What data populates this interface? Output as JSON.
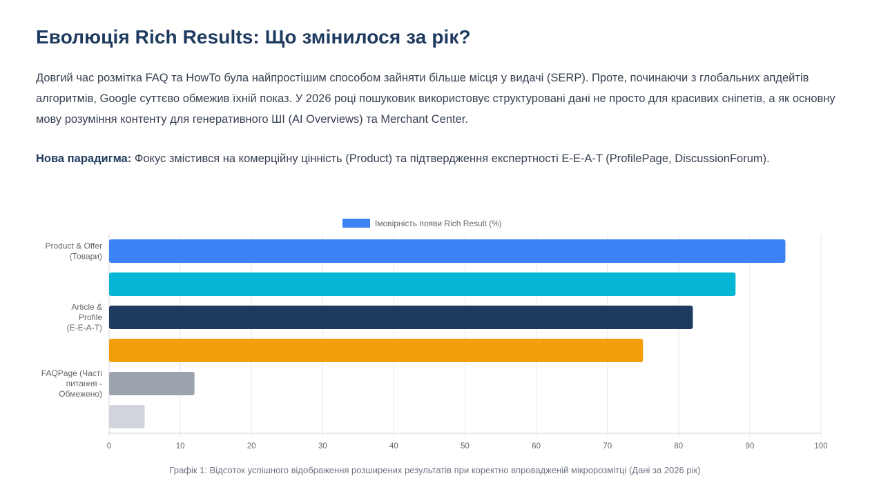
{
  "article": {
    "title": "Еволюція Rich Results: Що змінилося за рік?",
    "paragraph1": "Довгий час розмітка FAQ та HowTo була найпростішим способом зайняти більше місця у видачі (SERP). Проте, починаючи з глобальних апдейтів алгоритмів, Google суттєво обмежив їхній показ. У 2026 році пошуковик використовує структуровані дані не просто для красивих сніпетів, а як основну мову розуміння контенту для генеративного ШІ (AI Overviews) та Merchant Center.",
    "paragraph2_strong": "Нова парадигма:",
    "paragraph2_rest": " Фокус змістився на комерційну цінність (Product) та підтвердження експертності E-E-A-T (ProfilePage, DiscussionForum).",
    "caption": "Графік 1: Відсоток успішного відображення розширених результатів при коректно впровадженій мікророзмітці (Дані за 2026 рік)"
  },
  "chart_data": {
    "type": "bar",
    "orientation": "horizontal",
    "legend": {
      "label": "Імовірність появи Rich Result (%)",
      "color": "#3b82f6",
      "position": "top-center"
    },
    "categories": [
      [
        "Product & Offer",
        "(Товари)"
      ],
      [],
      [
        "Article &",
        "Profile",
        "(E-E-A-T)"
      ],
      [],
      [
        "FAQPage (Часті",
        "питання -",
        "Обмежено)"
      ],
      []
    ],
    "values": [
      95,
      88,
      82,
      75,
      12,
      5
    ],
    "colors": [
      "#3b82f6",
      "#06b6d4",
      "#1e3a5f",
      "#f59e0b",
      "#9ca3af",
      "#d1d5db"
    ],
    "xlim": [
      0,
      100
    ],
    "xticks": [
      0,
      10,
      20,
      30,
      40,
      50,
      60,
      70,
      80,
      90,
      100
    ],
    "grid": true
  }
}
